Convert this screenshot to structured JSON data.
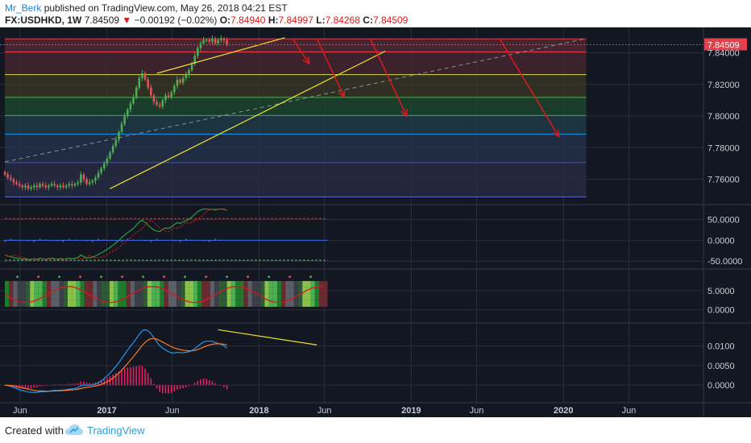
{
  "header": {
    "author": "Mr_Berk",
    "published": "published on TradingView.com, May 26, 2018 04:21 EST",
    "symbol": "FX:USDHKD, 1W",
    "price": "7.84509",
    "change_arrow": "▼",
    "change": "−0.00192 (−0.02%)",
    "o_label": "O:",
    "o_val": "7.84940",
    "h_label": "H:",
    "h_val": "7.84997",
    "l_label": "L:",
    "l_val": "7.84268",
    "c_label": "C:",
    "c_val": "7.84509"
  },
  "footer": {
    "created_with": "Created with",
    "brand": "TradingView",
    "brand_icon": "tradingview-cloud-icon"
  },
  "colors": {
    "background": "#131722",
    "grid": "#2a2e39",
    "up": "#4caf50",
    "down": "#e0555b",
    "trendline": "#f0e130",
    "arrow": "#e0191c",
    "price_label_bg": "#e0414b",
    "macd": "#2196f3",
    "signal": "#ff7a22",
    "histogram": "#e91e63"
  },
  "chart_data": [
    {
      "pane": "price",
      "type": "candlestick",
      "ylim": [
        7.745,
        7.854
      ],
      "ytick_labels": [
        "7.84000",
        "7.82000",
        "7.80000",
        "7.78000",
        "7.76000"
      ],
      "ytick_values": [
        7.84,
        7.82,
        7.8,
        7.78,
        7.76
      ],
      "last_price_label": "7.84509",
      "last_price": 7.84509,
      "x_labels": [
        "Jun",
        "2017",
        "Jun",
        "2018",
        "Jun",
        "2019",
        "Jun",
        "2020",
        "Jun"
      ],
      "x_label_times": [
        2016.43,
        2017.0,
        2017.43,
        2018.0,
        2018.43,
        2019.0,
        2019.43,
        2020.0,
        2020.43
      ],
      "xlim": [
        2016.33,
        2020.92
      ],
      "fib_levels": [
        7.8488,
        7.8405,
        7.8262,
        7.8118,
        7.8003,
        7.7885,
        7.7705,
        7.7488
      ],
      "fib_fills": [
        "#5a2a36",
        "#4a2730",
        "#3a3a24",
        "#1e4a2f",
        "#1f3f4a",
        "#24344d",
        "#2a2e45"
      ],
      "fib_lines": [
        "#e0414b",
        "#e0414b",
        "#d9d94a",
        "#4caf50",
        "#26a69a",
        "#2196f3",
        "#3f51b5",
        "#5c6bc0"
      ],
      "fib_x_end": 2020.15,
      "weekly_close": [
        7.763,
        7.761,
        7.76,
        7.758,
        7.757,
        7.756,
        7.755,
        7.756,
        7.754,
        7.755,
        7.756,
        7.755,
        7.757,
        7.756,
        7.755,
        7.756,
        7.757,
        7.756,
        7.755,
        7.756,
        7.755,
        7.756,
        7.757,
        7.756,
        7.757,
        7.758,
        7.763,
        7.76,
        7.757,
        7.758,
        7.759,
        7.761,
        7.764,
        7.767,
        7.77,
        7.773,
        7.777,
        7.781,
        7.785,
        7.79,
        7.795,
        7.8,
        7.804,
        7.808,
        7.812,
        7.818,
        7.824,
        7.827,
        7.823,
        7.818,
        7.813,
        7.809,
        7.807,
        7.806,
        7.81,
        7.813,
        7.812,
        7.815,
        7.819,
        7.823,
        7.821,
        7.824,
        7.826,
        7.829,
        7.833,
        7.838,
        7.843,
        7.846,
        7.848,
        7.848,
        7.847,
        7.849,
        7.846,
        7.848,
        7.849,
        7.848,
        7.845
      ],
      "start_time": 2016.33,
      "week_step": 0.0192,
      "trend_upper": [
        [
          2017.33,
          7.827
        ],
        [
          2018.17,
          7.8495
        ]
      ],
      "trend_lower": [
        [
          2017.02,
          7.754
        ],
        [
          2018.83,
          7.841
        ]
      ],
      "dashed_trend": [
        [
          2016.33,
          7.771
        ],
        [
          2020.15,
          7.849
        ]
      ],
      "down_arrows": [
        [
          [
            2018.22,
            7.849
          ],
          [
            2018.33,
            7.833
          ]
        ],
        [
          [
            2018.38,
            7.849
          ],
          [
            2018.56,
            7.812
          ]
        ],
        [
          [
            2018.73,
            7.849
          ],
          [
            2018.97,
            7.8
          ]
        ],
        [
          [
            2019.58,
            7.849
          ],
          [
            2019.97,
            7.787
          ]
        ]
      ]
    },
    {
      "pane": "oscillator",
      "type": "line",
      "ylim": [
        -65,
        80
      ],
      "ytick_labels": [
        "50.0000",
        "0.0000",
        "-50.0000"
      ],
      "ytick_values": [
        50,
        0,
        -50
      ],
      "upper_line": 52,
      "lower_line": -48,
      "x_end": 2018.45
    },
    {
      "pane": "heatmap",
      "type": "heatmap",
      "ylim": [
        -3,
        10
      ],
      "ytick_labels": [
        "5.0000",
        "0.0000"
      ],
      "ytick_values": [
        5,
        0
      ],
      "x_end": 2018.45
    },
    {
      "pane": "macd",
      "type": "line",
      "ylim": [
        -0.0045,
        0.0155
      ],
      "ytick_labels": [
        "0.0100",
        "0.0050",
        "0.0000"
      ],
      "ytick_values": [
        0.01,
        0.005,
        0.0
      ],
      "divergence": [
        [
          2017.73,
          0.0142
        ],
        [
          2018.38,
          0.0103
        ]
      ],
      "x_end": 2018.45
    }
  ]
}
